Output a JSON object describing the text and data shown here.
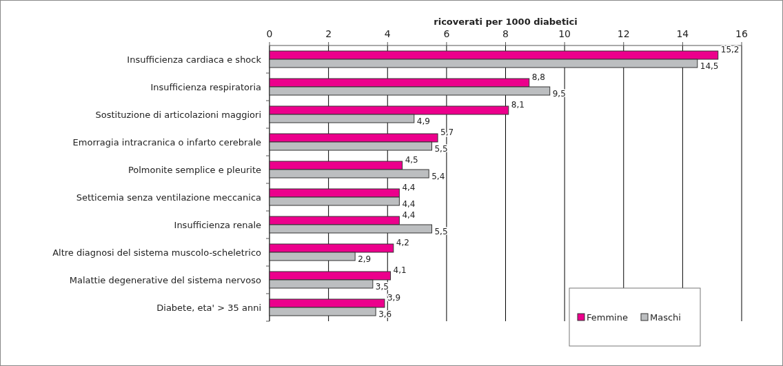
{
  "chart_data": {
    "type": "bar",
    "orientation": "horizontal",
    "xlabel": "ricoverati per 1000 diabetici",
    "categories": [
      "Insufficienza cardiaca e shock",
      "Insufficienza respiratoria",
      "Sostituzione di articolazioni maggiori",
      "Emorragia intracranica o infarto cerebrale",
      "Polmonite semplice e pleurite",
      "Setticemia senza ventilazione meccanica",
      "Insufficienza renale",
      "Altre diagnosi del sistema muscolo-scheletrico",
      "Malattie degenerative del sistema nervoso",
      "Diabete, eta' > 35 anni"
    ],
    "series": [
      {
        "name": "Femmine",
        "color": "#ec008c",
        "values": [
          15.2,
          8.8,
          8.1,
          5.7,
          4.5,
          4.4,
          4.4,
          4.2,
          4.1,
          3.9
        ],
        "value_labels": [
          "15,2",
          "8,8",
          "8,1",
          "5,7",
          "4,5",
          "4,4",
          "4,4",
          "4,2",
          "4,1",
          "3,9"
        ]
      },
      {
        "name": "Maschi",
        "color": "#bcbec0",
        "values": [
          14.5,
          9.5,
          4.9,
          5.5,
          5.4,
          4.4,
          5.5,
          2.9,
          3.5,
          3.6
        ],
        "value_labels": [
          "14,5",
          "9,5",
          "4,9",
          "5,5",
          "5,4",
          "4,4",
          "5,5",
          "2,9",
          "3,5",
          "3,6"
        ]
      }
    ],
    "xlim": [
      0,
      16
    ],
    "xticks": [
      0,
      2,
      4,
      6,
      8,
      10,
      12,
      14,
      16
    ],
    "grid": "x",
    "legend": "bottom right"
  }
}
